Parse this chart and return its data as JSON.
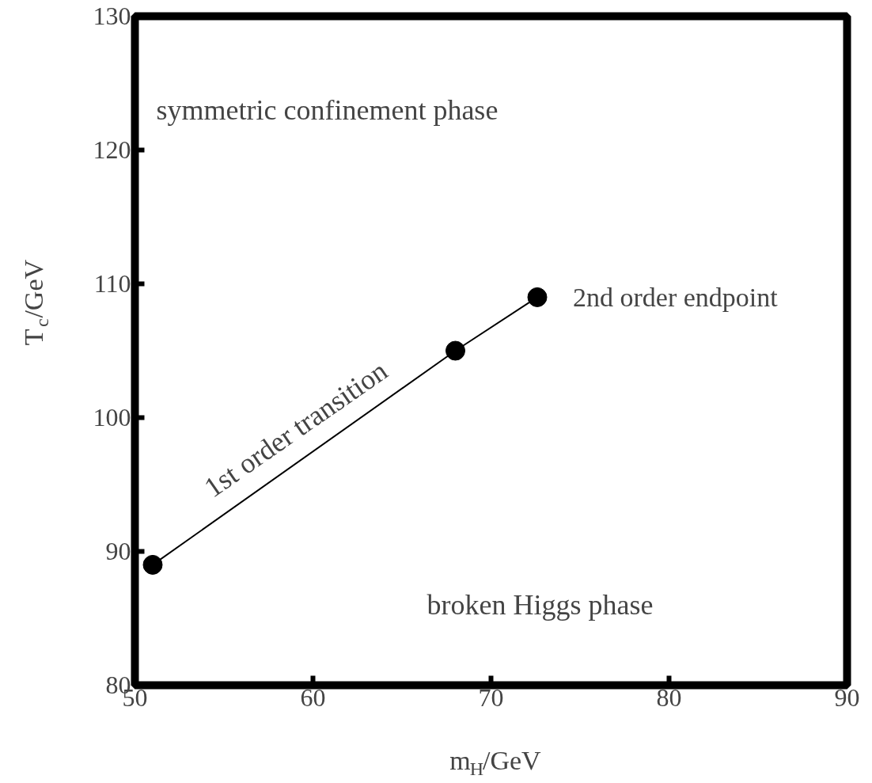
{
  "chart_data": {
    "type": "line",
    "xlabel": "m$_{H}$/GeV",
    "ylabel": "T$_{c}$/GeV",
    "x": [
      51,
      68,
      72.6
    ],
    "series": [
      {
        "color": "#000000",
        "values": [
          89,
          105,
          109
        ]
      }
    ],
    "xlim": [
      50,
      90
    ],
    "ylim": [
      80,
      130
    ],
    "xticks": [
      50,
      60,
      70,
      80,
      90
    ],
    "yticks": [
      80,
      90,
      100,
      110,
      120,
      130
    ],
    "marker": "circle",
    "line_style": "solid",
    "grid": false,
    "annotations": [
      "symmetric confinement phase",
      "broken Higgs phase",
      {
        "text": "1st order transition",
        "x": 60,
        "y": 97.3
      },
      {
        "text": "2nd order endpoint",
        "x": 72.6,
        "y": 109
      }
    ]
  }
}
